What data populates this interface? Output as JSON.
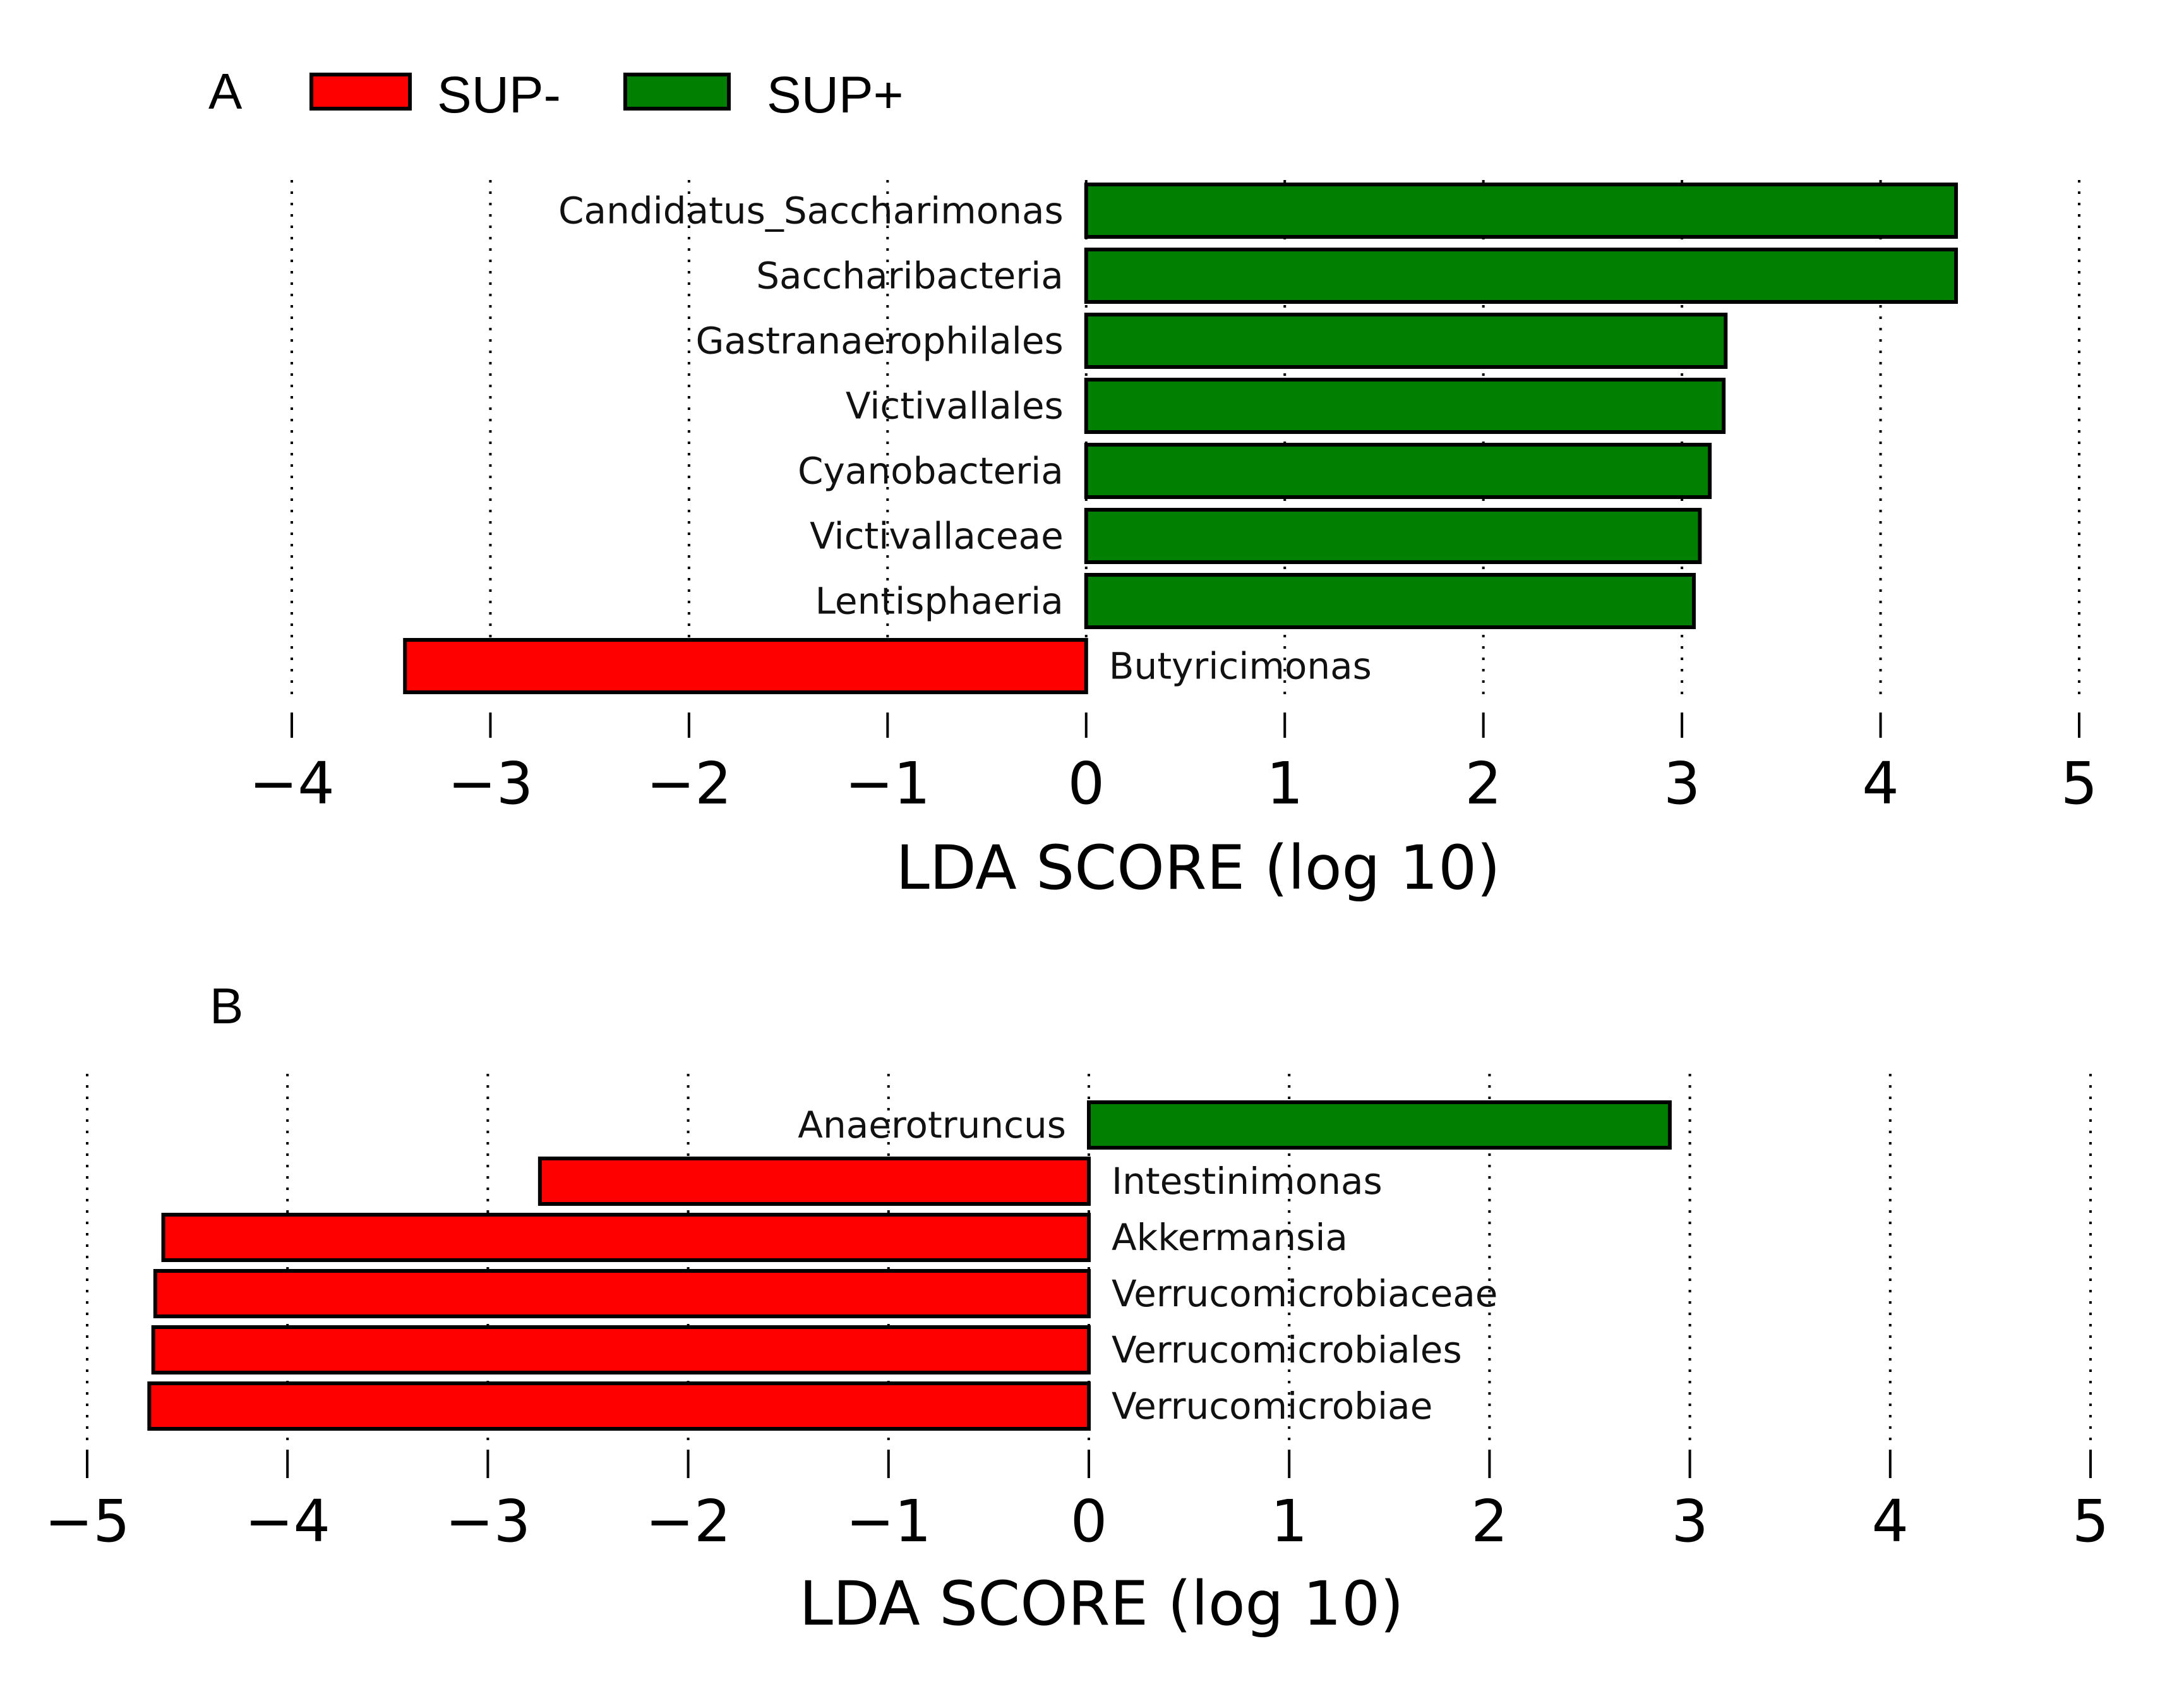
{
  "legend": {
    "items": [
      {
        "label": "SUP-",
        "color": "#ff0000"
      },
      {
        "label": "SUP+",
        "color": "#007f00"
      }
    ]
  },
  "chart_data": [
    {
      "type": "bar",
      "orientation": "horizontal",
      "panel": "A",
      "xlabel": "LDA SCORE (log 10)",
      "xlim": [
        -4,
        5
      ],
      "xticks": [
        -4,
        -3,
        -2,
        -1,
        0,
        1,
        2,
        3,
        4,
        5
      ],
      "xtick_labels": [
        "−4",
        "−3",
        "−2",
        "−1",
        "0",
        "1",
        "2",
        "3",
        "4",
        "5"
      ],
      "grid": true,
      "categories": [
        "Candidatus_Saccharimonas",
        "Saccharibacteria",
        "Gastranaerophilales",
        "Victivallales",
        "Cyanobacteria",
        "Victivallaceae",
        "Lentisphaeria",
        "Butyricimonas"
      ],
      "values": [
        4.38,
        4.38,
        3.22,
        3.21,
        3.14,
        3.09,
        3.06,
        -3.43
      ],
      "groups": [
        "SUP+",
        "SUP+",
        "SUP+",
        "SUP+",
        "SUP+",
        "SUP+",
        "SUP+",
        "SUP-"
      ]
    },
    {
      "type": "bar",
      "orientation": "horizontal",
      "panel": "B",
      "xlabel": "LDA SCORE (log 10)",
      "xlim": [
        -5,
        5
      ],
      "xticks": [
        -5,
        -4,
        -3,
        -2,
        -1,
        0,
        1,
        2,
        3,
        4,
        5
      ],
      "xtick_labels": [
        "−5",
        "−4",
        "−3",
        "−2",
        "−1",
        "0",
        "1",
        "2",
        "3",
        "4",
        "5"
      ],
      "grid": true,
      "categories": [
        "Anaerotruncus",
        "Intestinimonas",
        "Akkermansia",
        "Verrucomicrobiaceae",
        "Verrucomicrobiales",
        "Verrucomicrobiae"
      ],
      "values": [
        2.9,
        -2.74,
        -4.62,
        -4.66,
        -4.67,
        -4.69
      ],
      "groups": [
        "SUP+",
        "SUP-",
        "SUP-",
        "SUP-",
        "SUP-",
        "SUP-"
      ]
    }
  ]
}
